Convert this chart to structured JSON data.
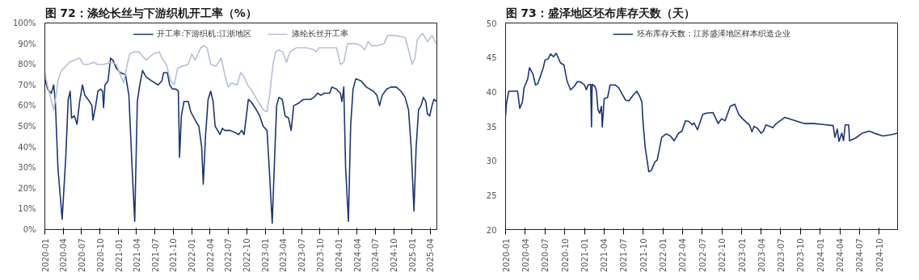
{
  "chart_data": [
    {
      "type": "line",
      "title": "图 72：涤纶长丝与下游织机开工率（%）",
      "xlim": [
        "2020-01-01",
        "2025-05-04"
      ],
      "ylim": [
        0,
        100
      ],
      "yticks": [
        {
          "value": 0,
          "label": "0%"
        },
        {
          "value": 10,
          "label": "10%"
        },
        {
          "value": 20,
          "label": "20%"
        },
        {
          "value": 30,
          "label": "30%"
        },
        {
          "value": 40,
          "label": "40%"
        },
        {
          "value": 50,
          "label": "50%"
        },
        {
          "value": 60,
          "label": "60%"
        },
        {
          "value": 70,
          "label": "70%"
        },
        {
          "value": 80,
          "label": "80%"
        },
        {
          "value": 90,
          "label": "90%"
        },
        {
          "value": 100,
          "label": "100%"
        }
      ],
      "xticks": [
        "2020-01",
        "2020-04",
        "2020-07",
        "2020-10",
        "2021-01",
        "2021-04",
        "2021-07",
        "2021-10",
        "2022-01",
        "2022-04",
        "2022-07",
        "2022-10",
        "2023-01",
        "2023-04",
        "2023-07",
        "2023-10",
        "2024-01",
        "2024-04",
        "2024-07",
        "2024-10",
        "2025-01",
        "2025-04"
      ],
      "legend": "top",
      "grid": false,
      "series": [
        {
          "name": "开工率:下游织机:江浙地区",
          "color": "#1b3572",
          "x": [
            "2020-01-01",
            "2020-01-15",
            "2020-02-02",
            "2020-02-14",
            "2020-02-22",
            "2020-03-06",
            "2020-03-27",
            "2020-04-14",
            "2020-04-26",
            "2020-05-06",
            "2020-05-13",
            "2020-05-27",
            "2020-06-09",
            "2020-06-22",
            "2020-07-06",
            "2020-07-18",
            "2020-08-10",
            "2020-08-22",
            "2020-08-27",
            "2020-09-10",
            "2020-09-21",
            "2020-10-05",
            "2020-10-14",
            "2020-10-19",
            "2020-10-26",
            "2020-11-10",
            "2020-11-23",
            "2020-12-05",
            "2020-12-22",
            "2021-01-10",
            "2021-02-05",
            "2021-02-22",
            "2021-03-10",
            "2021-03-23",
            "2021-04-05",
            "2021-04-17",
            "2021-05-01",
            "2021-05-18",
            "2021-06-14",
            "2021-07-18",
            "2021-08-05",
            "2021-08-14",
            "2021-09-01",
            "2021-09-13",
            "2021-09-27",
            "2021-10-14",
            "2021-10-26",
            "2021-11-01",
            "2021-11-10",
            "2021-11-23",
            "2021-12-14",
            "2021-12-27",
            "2022-01-18",
            "2022-02-05",
            "2022-02-19",
            "2022-02-27",
            "2022-03-10",
            "2022-03-23",
            "2022-04-05",
            "2022-04-17",
            "2022-04-27",
            "2022-05-10",
            "2022-05-21",
            "2022-06-02",
            "2022-06-14",
            "2022-07-10",
            "2022-08-05",
            "2022-08-22",
            "2022-09-06",
            "2022-09-18",
            "2022-09-27",
            "2022-10-09",
            "2022-10-22",
            "2022-11-18",
            "2022-12-05",
            "2022-12-22",
            "2023-01-10",
            "2023-01-21",
            "2023-02-05",
            "2023-02-17",
            "2023-02-27",
            "2023-03-10",
            "2023-03-27",
            "2023-04-10",
            "2023-04-27",
            "2023-05-10",
            "2023-05-23",
            "2023-06-14",
            "2023-07-10",
            "2023-08-14",
            "2023-09-01",
            "2023-09-18",
            "2023-10-05",
            "2023-10-22",
            "2023-11-18",
            "2023-11-29",
            "2023-12-22",
            "2024-01-10",
            "2024-01-18",
            "2024-01-27",
            "2024-02-05",
            "2024-02-19",
            "2024-03-01",
            "2024-03-13",
            "2024-03-27",
            "2024-04-22",
            "2024-05-18",
            "2024-06-22",
            "2024-07-10",
            "2024-07-23",
            "2024-08-05",
            "2024-08-27",
            "2024-09-18",
            "2024-10-14",
            "2024-11-06",
            "2024-11-27",
            "2024-12-14",
            "2024-12-27",
            "2025-01-10",
            "2025-01-21",
            "2025-02-02",
            "2025-02-14",
            "2025-02-26",
            "2025-03-10",
            "2025-03-18",
            "2025-03-29",
            "2025-04-10",
            "2025-04-19",
            "2025-05-04"
          ],
          "values": [
            73,
            68,
            66,
            70,
            62,
            30,
            5,
            35,
            63,
            67,
            54,
            55,
            51,
            62,
            70,
            65,
            62,
            60,
            53,
            60,
            67,
            68,
            67,
            59,
            70,
            72,
            83,
            82,
            78,
            76,
            75,
            65,
            30,
            4,
            62,
            70,
            77,
            74,
            72,
            70,
            72,
            76,
            76,
            70,
            68,
            68,
            67,
            35,
            55,
            62,
            62,
            57,
            53,
            50,
            40,
            22,
            45,
            63,
            67,
            62,
            50,
            48,
            46,
            49,
            48,
            48,
            47,
            46,
            48,
            46,
            53,
            63,
            62,
            58,
            55,
            50,
            48,
            30,
            3,
            35,
            60,
            64,
            63,
            55,
            54,
            48,
            60,
            61,
            63,
            63,
            64,
            66,
            65,
            66,
            66,
            69,
            68,
            66,
            62,
            69,
            30,
            4,
            50,
            68,
            73,
            72,
            69,
            67,
            65,
            60,
            65,
            68,
            69,
            69,
            67,
            64,
            58,
            40,
            9,
            40,
            58,
            60,
            64,
            62,
            56,
            55,
            60,
            63,
            62
          ]
        },
        {
          "name": "涤纶长丝开工率",
          "color": "#b4c0d6",
          "x": [
            "2020-01-01",
            "2020-01-18",
            "2020-02-14",
            "2020-02-26",
            "2020-03-06",
            "2020-03-23",
            "2020-04-14",
            "2020-05-01",
            "2020-05-27",
            "2020-06-22",
            "2020-07-10",
            "2020-08-05",
            "2020-09-01",
            "2020-09-18",
            "2020-10-22",
            "2020-11-27",
            "2020-12-22",
            "2021-01-10",
            "2021-01-27",
            "2021-02-14",
            "2021-02-26",
            "2021-03-18",
            "2021-04-14",
            "2021-05-01",
            "2021-05-18",
            "2021-06-22",
            "2021-07-23",
            "2021-08-05",
            "2021-08-27",
            "2021-09-18",
            "2021-10-05",
            "2021-10-22",
            "2021-11-10",
            "2021-12-14",
            "2022-01-01",
            "2022-01-18",
            "2022-02-14",
            "2022-03-01",
            "2022-03-18",
            "2022-04-05",
            "2022-05-01",
            "2022-05-27",
            "2022-06-14",
            "2022-07-01",
            "2022-07-18",
            "2022-08-14",
            "2022-09-01",
            "2022-09-18",
            "2022-10-05",
            "2022-10-22",
            "2022-11-27",
            "2022-12-22",
            "2023-01-10",
            "2023-01-23",
            "2023-02-09",
            "2023-02-22",
            "2023-03-10",
            "2023-03-29",
            "2023-04-17",
            "2023-05-04",
            "2023-06-05",
            "2023-07-27",
            "2023-09-01",
            "2023-09-10",
            "2023-09-27",
            "2023-11-10",
            "2023-12-22",
            "2024-01-10",
            "2024-01-27",
            "2024-02-14",
            "2024-03-27",
            "2024-04-22",
            "2024-05-10",
            "2024-05-27",
            "2024-06-14",
            "2024-07-10",
            "2024-08-14",
            "2024-09-01",
            "2024-10-05",
            "2024-11-27",
            "2024-12-17",
            "2025-01-01",
            "2025-01-15",
            "2025-01-27",
            "2025-02-22",
            "2025-03-18",
            "2025-04-10",
            "2025-05-01"
          ],
          "values": [
            76,
            68,
            58,
            65,
            72,
            77,
            79,
            81,
            82,
            83,
            80,
            80,
            81,
            80,
            80,
            81,
            80,
            75,
            71,
            80,
            85,
            86,
            86,
            84,
            82,
            85,
            86,
            83,
            80,
            72,
            70,
            78,
            79,
            80,
            85,
            82,
            88,
            89,
            88,
            80,
            79,
            83,
            75,
            69,
            71,
            70,
            76,
            74,
            70,
            68,
            62,
            58,
            57,
            65,
            80,
            86,
            87,
            86,
            81,
            86,
            88,
            88,
            87,
            86,
            88,
            88,
            88,
            80,
            81,
            90,
            90,
            89,
            87,
            91,
            89,
            89,
            90,
            94,
            94,
            93,
            86,
            80,
            83,
            92,
            95,
            91,
            94,
            90
          ]
        }
      ]
    },
    {
      "type": "line",
      "title": "图 73：盛泽地区坯布库存天数（天）",
      "xlim": [
        "2020-01-01",
        "2024-12-25"
      ],
      "ylim": [
        20,
        50
      ],
      "yticks": [
        20,
        25,
        30,
        35,
        40,
        45,
        50
      ],
      "xticks": [
        "2020-01",
        "2020-04",
        "2020-07",
        "2020-10",
        "2021-01",
        "2021-04",
        "2021-07",
        "2021-10",
        "2022-01",
        "2022-04",
        "2022-07",
        "2022-10",
        "2023-01",
        "2023-04",
        "2023-07",
        "2023-10",
        "2024-01",
        "2024-04",
        "2024-07",
        "2024-10"
      ],
      "legend": "top",
      "grid": false,
      "series": [
        {
          "name": "坯布库存天数：江苏盛泽地区样本织造企业",
          "color": "#1b3572",
          "x": [
            "2020-01-01",
            "2020-01-05",
            "2020-01-16",
            "2020-02-26",
            "2020-03-07",
            "2020-03-19",
            "2020-03-27",
            "2020-04-13",
            "2020-04-21",
            "2020-05-07",
            "2020-05-19",
            "2020-05-30",
            "2020-06-24",
            "2020-07-02",
            "2020-07-17",
            "2020-07-28",
            "2020-08-11",
            "2020-08-23",
            "2020-09-12",
            "2020-09-28",
            "2020-10-13",
            "2020-10-29",
            "2020-11-15",
            "2020-11-30",
            "2020-12-16",
            "2021-01-02",
            "2021-01-10",
            "2021-01-18",
            "2021-01-30",
            "2021-02-03",
            "2021-02-06",
            "2021-02-19",
            "2021-02-26",
            "2021-03-05",
            "2021-03-13",
            "2021-03-21",
            "2021-03-25",
            "2021-04-03",
            "2021-04-19",
            "2021-04-30",
            "2021-05-24",
            "2021-06-09",
            "2021-06-25",
            "2021-07-11",
            "2021-07-27",
            "2021-08-12",
            "2021-09-01",
            "2021-09-14",
            "2021-09-25",
            "2021-09-29",
            "2021-10-10",
            "2021-10-27",
            "2021-11-08",
            "2021-11-24",
            "2021-12-05",
            "2021-12-26",
            "2022-01-16",
            "2022-02-04",
            "2022-02-22",
            "2022-03-14",
            "2022-03-30",
            "2022-04-15",
            "2022-05-01",
            "2022-05-17",
            "2022-05-25",
            "2022-06-10",
            "2022-06-18",
            "2022-07-04",
            "2022-07-20",
            "2022-08-21",
            "2022-09-14",
            "2022-09-30",
            "2022-10-16",
            "2022-11-09",
            "2022-11-30",
            "2022-12-19",
            "2023-01-05",
            "2023-02-06",
            "2023-02-18",
            "2023-02-28",
            "2023-03-15",
            "2023-04-01",
            "2023-04-12",
            "2023-04-24",
            "2023-05-26",
            "2023-06-11",
            "2023-07-21",
            "2023-10-17",
            "2023-12-04",
            "2024-03-01",
            "2024-03-09",
            "2024-03-20",
            "2024-03-28",
            "2024-04-10",
            "2024-04-18",
            "2024-04-26",
            "2024-05-12",
            "2024-05-16",
            "2024-06-13",
            "2024-07-14",
            "2024-08-16",
            "2024-09-17",
            "2024-10-18",
            "2024-11-28",
            "2024-12-25"
          ],
          "values": [
            36.5,
            38.3,
            40.1,
            40.1,
            37.6,
            38.5,
            40.6,
            41.9,
            43.5,
            42.6,
            41.0,
            41.2,
            43.5,
            44.6,
            44.8,
            45.5,
            45.1,
            45.6,
            44.2,
            43.9,
            41.5,
            40.3,
            40.8,
            41.5,
            41.4,
            41.0,
            40.3,
            41.0,
            41.1,
            34.9,
            41.1,
            40.8,
            40.1,
            37.4,
            36.9,
            37.9,
            34.9,
            39.0,
            39.2,
            41.0,
            41.0,
            40.6,
            39.7,
            38.8,
            38.7,
            39.4,
            40.1,
            39.4,
            38.5,
            36.1,
            32.0,
            28.4,
            28.6,
            29.8,
            30.1,
            33.4,
            33.9,
            33.6,
            32.9,
            34.0,
            34.3,
            35.8,
            35.7,
            35.2,
            35.5,
            34.5,
            35.2,
            36.7,
            36.9,
            37.0,
            35.4,
            36.1,
            35.8,
            37.9,
            38.2,
            36.7,
            36.1,
            35.2,
            34.2,
            35.0,
            34.7,
            34.0,
            34.3,
            35.2,
            34.8,
            35.4,
            36.3,
            35.4,
            35.4,
            35.1,
            33.4,
            34.6,
            32.8,
            34.0,
            32.9,
            35.2,
            35.2,
            32.9,
            33.3,
            34.0,
            34.3,
            33.9,
            33.6,
            33.8,
            34.0
          ]
        }
      ]
    }
  ]
}
